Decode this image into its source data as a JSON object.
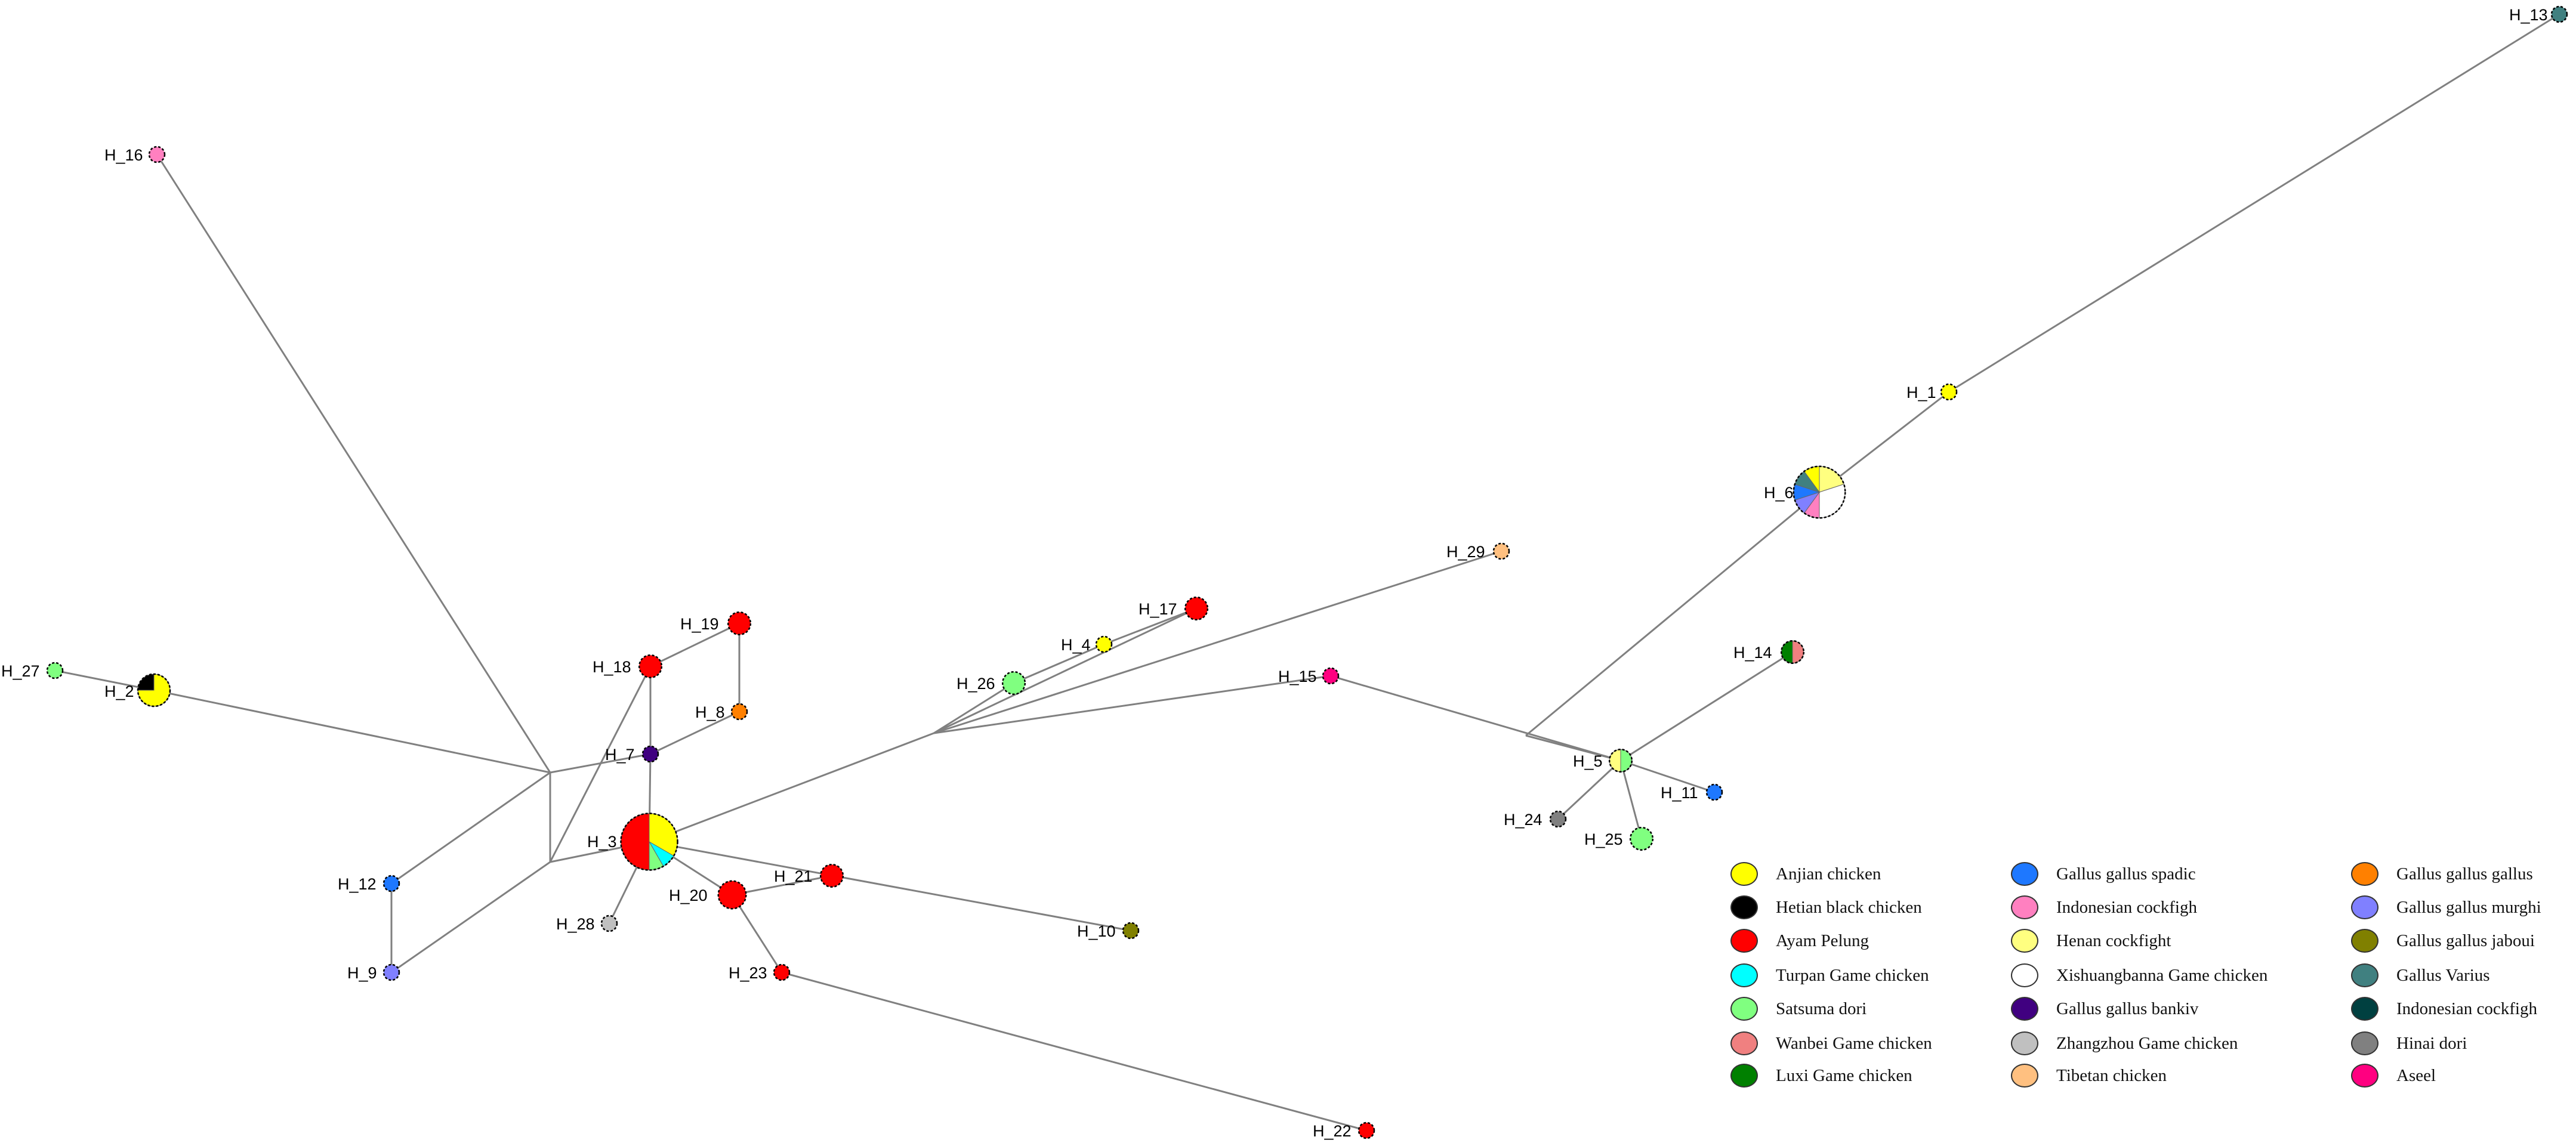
{
  "nodes": [
    {
      "id": "H_1",
      "label": "H_1",
      "parts": [
        {
          "group": "Anjian chicken",
          "count": 1
        }
      ]
    },
    {
      "id": "H_2",
      "label": "H_2",
      "parts": [
        {
          "group": "Anjian chicken",
          "count": 3
        },
        {
          "group": "Hetian black chicken",
          "count": 1
        }
      ]
    },
    {
      "id": "H_3",
      "label": "H_3",
      "parts": [
        {
          "group": "Anjian chicken",
          "count": 4
        },
        {
          "group": "Turpan Game chicken",
          "count": 1
        },
        {
          "group": "Satsuma dori",
          "count": 1
        },
        {
          "group": "Ayam Pelung",
          "count": 6
        }
      ]
    },
    {
      "id": "H_4",
      "label": "H_4",
      "parts": [
        {
          "group": "Anjian chicken",
          "count": 1
        }
      ]
    },
    {
      "id": "H_5",
      "label": "H_5",
      "parts": [
        {
          "group": "Satsuma dori",
          "count": 1
        },
        {
          "group": "Henan cockfight",
          "count": 1
        }
      ]
    },
    {
      "id": "H_6",
      "label": "H_6",
      "parts": [
        {
          "group": "Henan cockfight",
          "count": 2
        },
        {
          "group": "Xishuangbanna Game chicken",
          "count": 3
        },
        {
          "group": "Indonesian cockfigh",
          "count": 1
        },
        {
          "group": "Gallus gallus murghi",
          "count": 1
        },
        {
          "group": "Gallus gallus spadic",
          "count": 1
        },
        {
          "group": "Gallus Varius",
          "count": 1
        },
        {
          "group": "Anjian chicken",
          "count": 1
        }
      ]
    },
    {
      "id": "H_7",
      "label": "H_7",
      "parts": [
        {
          "group": "Gallus gallus bankiv",
          "count": 1
        }
      ]
    },
    {
      "id": "H_8",
      "label": "H_8",
      "parts": [
        {
          "group": "Gallus gallus gallus",
          "count": 1
        }
      ]
    },
    {
      "id": "H_9",
      "label": "H_9",
      "parts": [
        {
          "group": "Gallus gallus murghi",
          "count": 1
        }
      ]
    },
    {
      "id": "H_10",
      "label": "H_10",
      "parts": [
        {
          "group": "Gallus gallus jaboui",
          "count": 1
        }
      ]
    },
    {
      "id": "H_11",
      "label": "H_11",
      "parts": [
        {
          "group": "Gallus gallus spadic",
          "count": 1
        }
      ]
    },
    {
      "id": "H_12",
      "label": "H_12",
      "parts": [
        {
          "group": "Gallus gallus spadic",
          "count": 1
        }
      ]
    },
    {
      "id": "H_13",
      "label": "H_13",
      "parts": [
        {
          "group": "Gallus Varius",
          "count": 1
        }
      ]
    },
    {
      "id": "H_14",
      "label": "H_14",
      "parts": [
        {
          "group": "Wanbei Game chicken",
          "count": 1
        },
        {
          "group": "Luxi Game chicken",
          "count": 1
        }
      ]
    },
    {
      "id": "H_15",
      "label": "H_15",
      "parts": [
        {
          "group": "Aseel",
          "count": 1
        }
      ]
    },
    {
      "id": "H_16",
      "label": "H_16",
      "parts": [
        {
          "group": "Indonesian cockfigh",
          "count": 1
        }
      ]
    },
    {
      "id": "H_17",
      "label": "H_17",
      "parts": [
        {
          "group": "Ayam Pelung",
          "count": 2
        }
      ]
    },
    {
      "id": "H_18",
      "label": "H_18",
      "parts": [
        {
          "group": "Ayam Pelung",
          "count": 2
        }
      ]
    },
    {
      "id": "H_19",
      "label": "H_19",
      "parts": [
        {
          "group": "Ayam Pelung",
          "count": 2
        }
      ]
    },
    {
      "id": "H_20",
      "label": "H_20",
      "parts": [
        {
          "group": "Ayam Pelung",
          "count": 3
        }
      ]
    },
    {
      "id": "H_21",
      "label": "H_21",
      "parts": [
        {
          "group": "Ayam Pelung",
          "count": 2
        }
      ]
    },
    {
      "id": "H_22",
      "label": "H_22",
      "parts": [
        {
          "group": "Ayam Pelung",
          "count": 1
        }
      ]
    },
    {
      "id": "H_23",
      "label": "H_23",
      "parts": [
        {
          "group": "Ayam Pelung",
          "count": 1
        }
      ]
    },
    {
      "id": "H_24",
      "label": "H_24",
      "parts": [
        {
          "group": "Hinai dori",
          "count": 1
        }
      ]
    },
    {
      "id": "H_25",
      "label": "H_25",
      "parts": [
        {
          "group": "Satsuma dori",
          "count": 2
        }
      ]
    },
    {
      "id": "H_26",
      "label": "H_26",
      "parts": [
        {
          "group": "Satsuma dori",
          "count": 2
        }
      ]
    },
    {
      "id": "H_27",
      "label": "H_27",
      "parts": [
        {
          "group": "Satsuma dori",
          "count": 1
        }
      ]
    },
    {
      "id": "H_28",
      "label": "H_28",
      "parts": [
        {
          "group": "Zhangzhou Game chicken",
          "count": 1
        }
      ]
    },
    {
      "id": "H_29",
      "label": "H_29",
      "parts": [
        {
          "group": "Tibetan chicken",
          "count": 1
        }
      ]
    }
  ],
  "edges": [
    [
      "J1",
      "H_16"
    ],
    [
      "J1",
      "H_2"
    ],
    [
      "J1",
      "H_7"
    ],
    [
      "J1",
      "H_12"
    ],
    [
      "J1",
      "J2"
    ],
    [
      "J2",
      "H_9"
    ],
    [
      "J2",
      "H_3"
    ],
    [
      "J2",
      "H_18"
    ],
    [
      "H_12",
      "H_9"
    ],
    [
      "H_2",
      "H_27"
    ],
    [
      "H_7",
      "H_18"
    ],
    [
      "H_7",
      "H_3"
    ],
    [
      "H_7",
      "H_8"
    ],
    [
      "H_18",
      "H_19"
    ],
    [
      "H_19",
      "H_8"
    ],
    [
      "H_3",
      "H_28"
    ],
    [
      "H_3",
      "H_20"
    ],
    [
      "H_3",
      "H_10"
    ],
    [
      "H_3",
      "J3"
    ],
    [
      "H_20",
      "H_21"
    ],
    [
      "H_20",
      "H_23"
    ],
    [
      "H_23",
      "H_22"
    ],
    [
      "J3",
      "H_26"
    ],
    [
      "J3",
      "H_17"
    ],
    [
      "J3",
      "H_29"
    ],
    [
      "J3",
      "H_15"
    ],
    [
      "H_26",
      "H_4"
    ],
    [
      "H_4",
      "H_17"
    ],
    [
      "H_15",
      "H_5"
    ],
    [
      "H_5",
      "H_11"
    ],
    [
      "H_5",
      "H_24"
    ],
    [
      "H_5",
      "H_25"
    ],
    [
      "H_5",
      "H_14"
    ],
    [
      "H_5",
      "J4"
    ],
    [
      "J4",
      "H_6"
    ],
    [
      "H_6",
      "H_1"
    ],
    [
      "H_1",
      "H_13"
    ]
  ],
  "legend": [
    {
      "label": "Anjian chicken",
      "color": "#FFFF00"
    },
    {
      "label": "Hetian black chicken",
      "color": "#000000"
    },
    {
      "label": "Ayam Pelung",
      "color": "#FF0000"
    },
    {
      "label": "Turpan Game chicken",
      "color": "#00FFFF"
    },
    {
      "label": "Satsuma dori",
      "color": "#80FF80"
    },
    {
      "label": "Wanbei Game chicken",
      "color": "#F08080"
    },
    {
      "label": "Luxi Game chicken",
      "color": "#008000"
    },
    {
      "label": "Gallus gallus spadic",
      "color": "#1E78FF"
    },
    {
      "label": "Indonesian cockfigh",
      "color": "#FF80C0"
    },
    {
      "label": "Henan cockfight",
      "color": "#FFFF80"
    },
    {
      "label": "Xishuangbanna Game chicken",
      "color": "#FFFFFF"
    },
    {
      "label": "Gallus gallus bankiv",
      "color": "#400080"
    },
    {
      "label": "Zhangzhou Game chicken",
      "color": "#C0C0C0"
    },
    {
      "label": "Tibetan chicken",
      "color": "#FFC080"
    },
    {
      "label": "Gallus gallus gallus",
      "color": "#FF8000"
    },
    {
      "label": "Gallus gallus murghi",
      "color": "#8080FF"
    },
    {
      "label": "Gallus gallus jaboui",
      "color": "#808000"
    },
    {
      "label": "Gallus Varius",
      "color": "#408080"
    },
    {
      "label": "Indonesian cockfigh",
      "color": "#004040"
    },
    {
      "label": "Hinai dori",
      "color": "#808080"
    },
    {
      "label": "Aseel",
      "color": "#FF0080"
    }
  ]
}
